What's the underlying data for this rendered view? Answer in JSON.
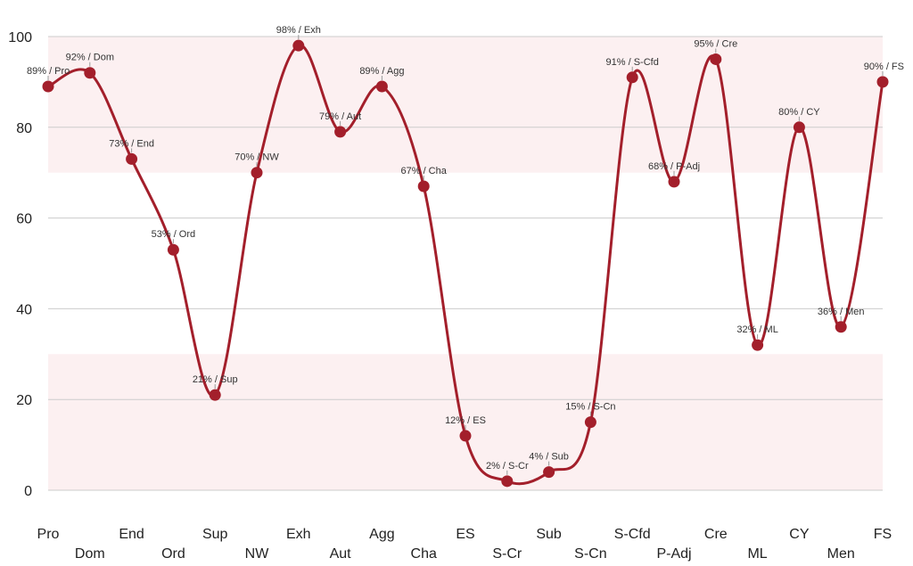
{
  "chart_data": {
    "type": "line",
    "title": "",
    "xlabel": "",
    "ylabel": "",
    "ylim": [
      0,
      100
    ],
    "yticks": [
      0,
      20,
      40,
      60,
      80,
      100
    ],
    "grid": true,
    "smooth": true,
    "bands": [
      {
        "from": 70,
        "to": 100,
        "color": "#fcf0f1"
      },
      {
        "from": 0,
        "to": 30,
        "color": "#fcf0f1"
      }
    ],
    "categories": [
      "Pro",
      "Dom",
      "End",
      "Ord",
      "Sup",
      "NW",
      "Exh",
      "Aut",
      "Agg",
      "Cha",
      "ES",
      "S-Cr",
      "Sub",
      "S-Cn",
      "S-Cfd",
      "P-Adj",
      "Cre",
      "ML",
      "CY",
      "Men",
      "FS"
    ],
    "series": [
      {
        "values": [
          89,
          92,
          73,
          53,
          21,
          70,
          98,
          79,
          89,
          67,
          12,
          2,
          4,
          15,
          91,
          68,
          95,
          32,
          80,
          36,
          90
        ],
        "labels": [
          "89% / Pro",
          "92% / Dom",
          "73% / End",
          "53% / Ord",
          "21% / Sup",
          "70% / NW",
          "98% / Exh",
          "79% / Aut",
          "89% / Agg",
          "67% / Cha",
          "12% / ES",
          "2% / S-Cr",
          "4% / Sub",
          "15% / S-Cn",
          "91% / S-Cfd",
          "68% / P-Adj",
          "95% / Cre",
          "32% / ML",
          "80% / CY",
          "36% / Men",
          "90% / FS"
        ],
        "color": "#a31f2b"
      }
    ],
    "colors": {
      "line": "#a31f2b",
      "marker": "#a31f2b",
      "band": "#fcf0f1",
      "grid": "#cccccc",
      "text": "#222222"
    }
  }
}
